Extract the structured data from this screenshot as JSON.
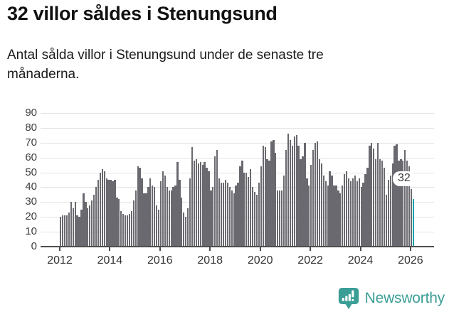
{
  "header": {
    "title": "32 villor såldes i Stenungsund",
    "subtitle": "Antal sålda villor i Stenungsund under de senaste tre månaderna."
  },
  "chart_data": {
    "type": "bar",
    "title": "32 villor såldes i Stenungsund",
    "subtitle": "Antal sålda villor i Stenungsund under de senaste tre månaderna.",
    "x_start": "2012-01",
    "x_end": "2026-02",
    "x_frequency": "monthly",
    "x_tick_labels": [
      "2012",
      "2014",
      "2016",
      "2018",
      "2020",
      "2022",
      "2024",
      "2026"
    ],
    "y_ticks": [
      0,
      10,
      20,
      30,
      40,
      50,
      60,
      70,
      80,
      90
    ],
    "ylim": [
      0,
      90
    ],
    "grid": "horizontal",
    "legend": "none",
    "values": [
      20,
      21,
      21,
      21,
      23,
      30,
      26,
      30,
      21,
      20,
      25,
      36,
      30,
      26,
      28,
      31,
      35,
      40,
      45,
      50,
      52,
      51,
      46,
      45,
      45,
      44,
      45,
      33,
      32,
      24,
      22,
      21,
      21,
      22,
      24,
      31,
      38,
      54,
      53,
      46,
      36,
      36,
      40,
      46,
      41,
      40,
      28,
      25,
      44,
      51,
      48,
      40,
      38,
      38,
      40,
      41,
      57,
      45,
      33,
      23,
      20,
      26,
      46,
      67,
      58,
      59,
      56,
      57,
      55,
      57,
      53,
      51,
      38,
      40,
      61,
      65,
      46,
      43,
      43,
      45,
      43,
      40,
      38,
      36,
      41,
      43,
      54,
      58,
      50,
      50,
      47,
      52,
      40,
      37,
      35,
      43,
      54,
      68,
      67,
      59,
      58,
      71,
      72,
      63,
      38,
      38,
      38,
      48,
      65,
      76,
      72,
      68,
      74,
      75,
      68,
      59,
      61,
      70,
      46,
      41,
      55,
      65,
      70,
      71,
      59,
      56,
      48,
      44,
      41,
      51,
      48,
      41,
      41,
      38,
      36,
      41,
      49,
      51,
      46,
      44,
      46,
      48,
      44,
      46,
      40,
      43,
      49,
      53,
      68,
      70,
      66,
      59,
      70,
      59,
      58,
      53,
      35,
      45,
      48,
      56,
      68,
      69,
      58,
      59,
      58,
      65,
      58,
      54,
      39,
      32
    ],
    "highlight_last": {
      "label": "32",
      "value": 32
    }
  },
  "colors": {
    "bar": "#69696f",
    "highlight": "#18a0a6",
    "gridline": "#e2e2e2",
    "axis": "#4f4f4f",
    "tick_text": "#3d3d3d",
    "brand": "#3b9e96"
  },
  "branding": {
    "name": "Newsworthy"
  }
}
